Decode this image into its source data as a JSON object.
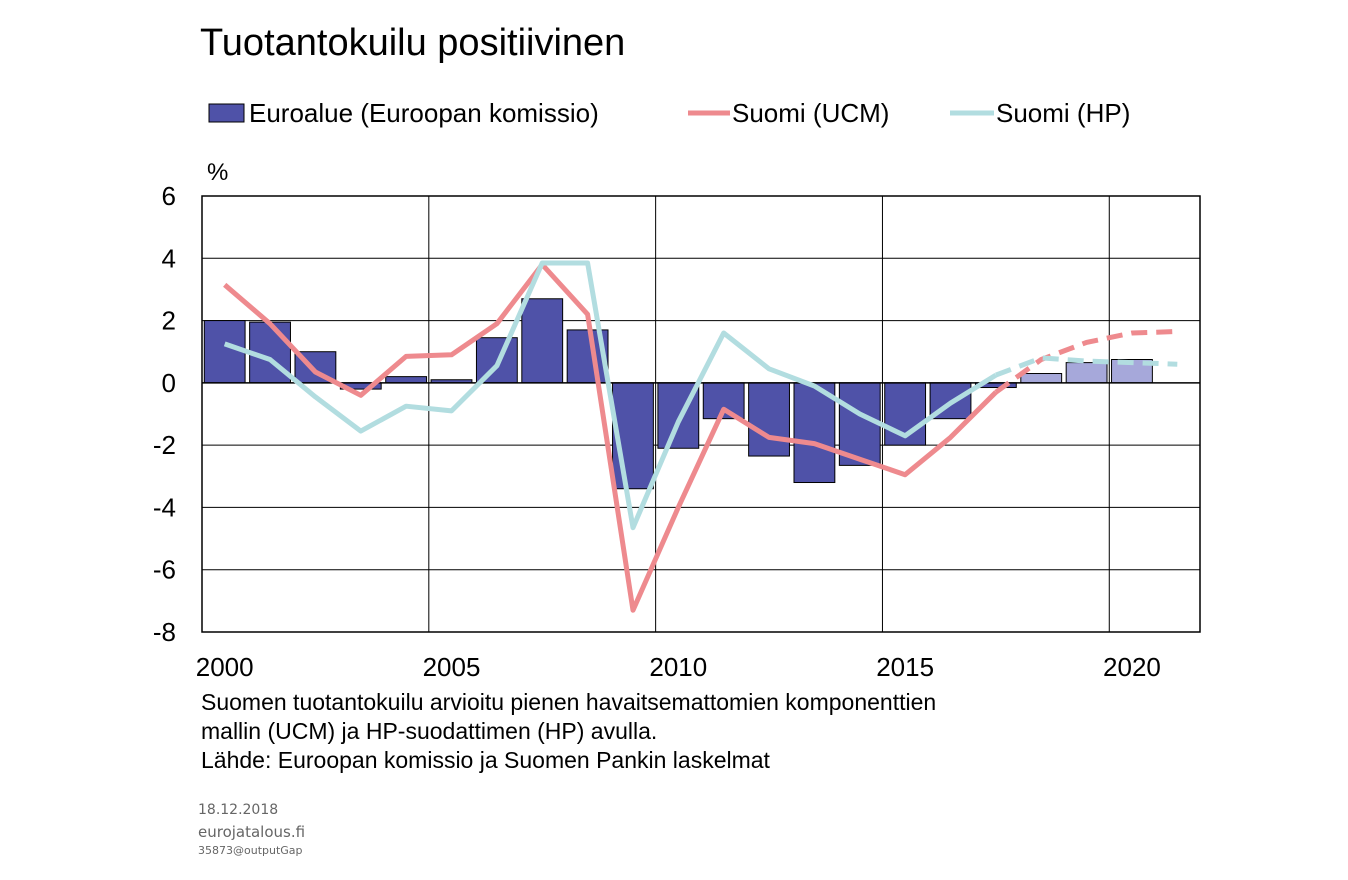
{
  "chart_data": {
    "type": "bar",
    "title": "Tuotantokuilu positiivinen",
    "ylabel": "%",
    "xlabel": "",
    "ylim": [
      -8,
      6
    ],
    "xlim": [
      1999.5,
      2021.5
    ],
    "y_ticks": [
      "6",
      "4",
      "2",
      "0",
      "-2",
      "-4",
      "-6",
      "-8"
    ],
    "y_tick_values": [
      6,
      4,
      2,
      0,
      -2,
      -4,
      -6,
      -8
    ],
    "x_ticks": [
      "2000",
      "2005",
      "2010",
      "2015",
      "2020"
    ],
    "x_tick_values": [
      2000,
      2005,
      2010,
      2015,
      2020
    ],
    "grid": true,
    "legend_position": "top",
    "forecast_from": 2018,
    "series": [
      {
        "name": "Euroalue (Euroopan komissio)",
        "kind": "bar",
        "color": "#4F52A8",
        "forecast_color": "#A6A8DA",
        "x": [
          2000,
          2001,
          2002,
          2003,
          2004,
          2005,
          2006,
          2007,
          2008,
          2009,
          2010,
          2011,
          2012,
          2013,
          2014,
          2015,
          2016,
          2017,
          2018,
          2019,
          2020
        ],
        "values": [
          2.0,
          1.95,
          1.0,
          -0.2,
          0.2,
          0.1,
          1.45,
          2.7,
          1.7,
          -3.4,
          -2.1,
          -1.15,
          -2.35,
          -3.2,
          -2.65,
          -2.0,
          -1.15,
          -0.15,
          0.3,
          0.65,
          0.75
        ]
      },
      {
        "name": "Suomi (UCM)",
        "kind": "line",
        "color": "#EE8A8E",
        "x": [
          2000,
          2001,
          2002,
          2003,
          2004,
          2005,
          2006,
          2007,
          2008,
          2009,
          2010,
          2011,
          2012,
          2013,
          2014,
          2015,
          2016,
          2017,
          2018,
          2019,
          2020,
          2021
        ],
        "values": [
          3.15,
          1.9,
          0.35,
          -0.4,
          0.85,
          0.9,
          1.9,
          3.8,
          2.2,
          -7.3,
          -4.0,
          -0.85,
          -1.75,
          -1.95,
          -2.45,
          -2.95,
          -1.75,
          -0.3,
          0.75,
          1.3,
          1.6,
          1.65
        ]
      },
      {
        "name": "Suomi (HP)",
        "kind": "line",
        "color": "#B2DDE0",
        "x": [
          2000,
          2001,
          2002,
          2003,
          2004,
          2005,
          2006,
          2007,
          2008,
          2009,
          2010,
          2011,
          2012,
          2013,
          2014,
          2015,
          2016,
          2017,
          2018,
          2019,
          2020,
          2021
        ],
        "values": [
          1.25,
          0.75,
          -0.45,
          -1.55,
          -0.75,
          -0.9,
          0.55,
          3.85,
          3.85,
          -4.65,
          -1.25,
          1.6,
          0.45,
          -0.1,
          -1.0,
          -1.7,
          -0.65,
          0.25,
          0.8,
          0.7,
          0.65,
          0.6
        ]
      }
    ]
  },
  "notes": {
    "line1": "Suomen tuotantokuilu arvioitu pienen havaitsemattomien komponenttien",
    "line2": "mallin (UCM) ja HP-suodattimen (HP) avulla.",
    "line3": "Lähde: Euroopan komissio ja Suomen Pankin laskelmat"
  },
  "footer": {
    "date": "18.12.2018",
    "site": "eurojatalous.fi",
    "code": "35873@outputGap"
  }
}
